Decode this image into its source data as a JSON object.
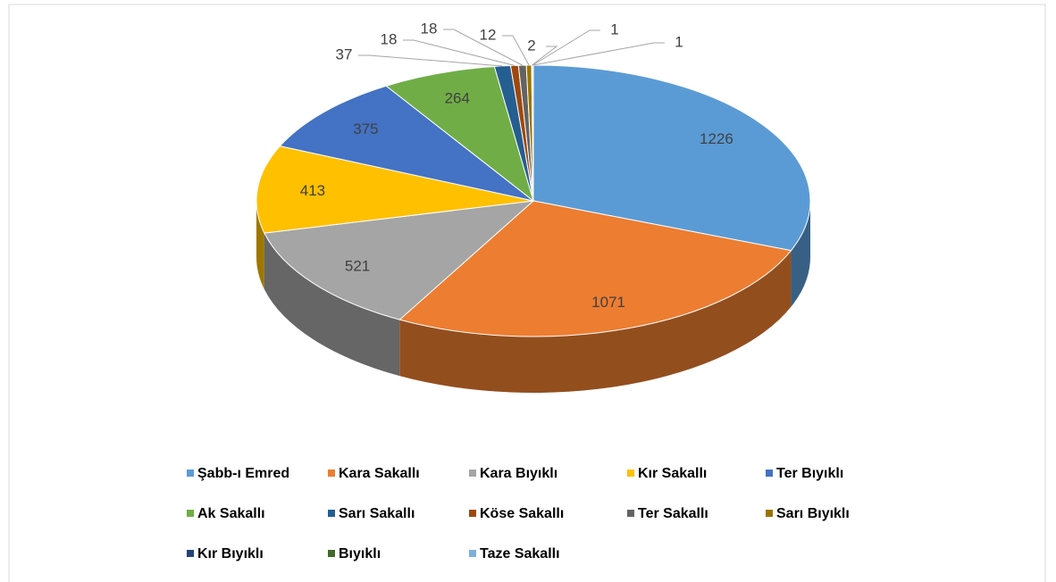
{
  "chart_data": {
    "type": "pie3d",
    "categories": [
      "Şabb-ı Emred",
      "Kara Sakallı",
      "Kara Bıyıklı",
      "Kır Sakallı",
      "Ter Bıyıklı",
      "Ak Sakallı",
      "Sarı Sakallı",
      "Köse Sakallı",
      "Ter Sakallı",
      "Sarı Bıyıklı",
      "Kır Bıyıklı",
      "Bıyıklı",
      "Taze Sakallı"
    ],
    "values": [
      1226,
      1071,
      521,
      413,
      375,
      264,
      37,
      18,
      18,
      12,
      2,
      1,
      1
    ],
    "colors": [
      "#5b9bd5",
      "#ed7d31",
      "#a5a5a5",
      "#ffc000",
      "#4472c4",
      "#70ad47",
      "#255e91",
      "#9e480e",
      "#636363",
      "#997300",
      "#264478",
      "#43682b",
      "#7cafdd"
    ],
    "legend": "bottom"
  }
}
